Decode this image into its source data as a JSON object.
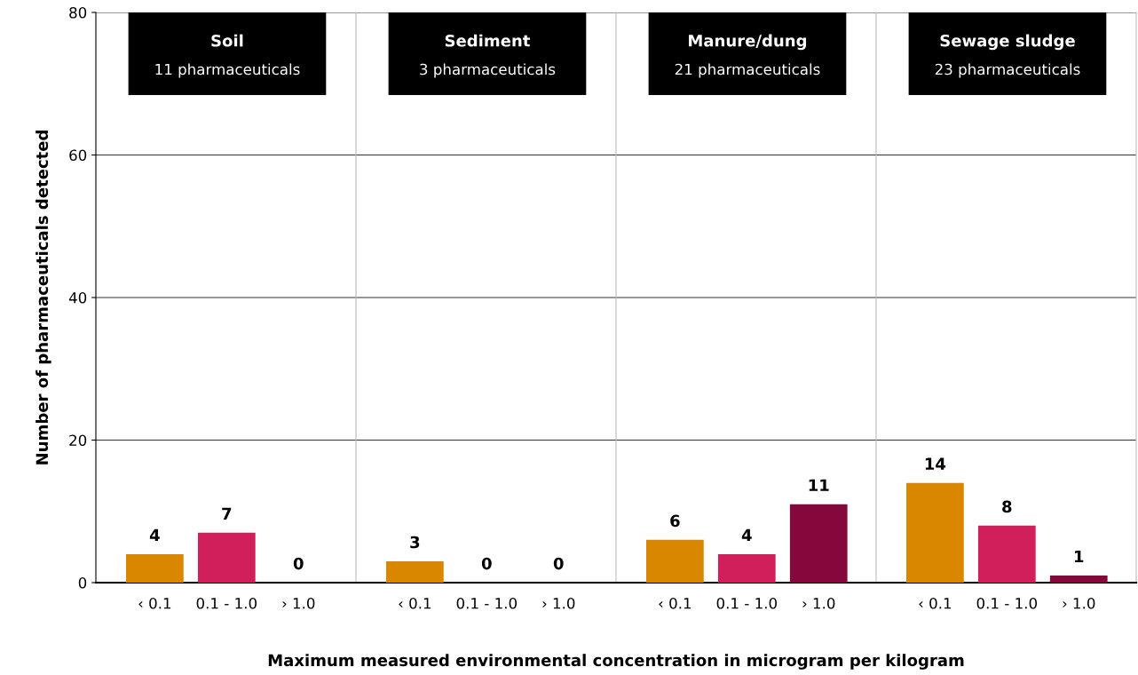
{
  "chart_data": [
    {
      "type": "bar",
      "title": "Soil",
      "subtitle": "11 pharmaceuticals",
      "ylabel": "Number of pharmaceuticals detected",
      "xlabel": "Maximum measured environmental concentration in microgram per kilogram",
      "categories": [
        "‹ 0.1",
        "0.1 - 1.0",
        "› 1.0"
      ],
      "values": [
        4,
        7,
        0
      ],
      "colors": [
        "#d98600",
        "#d11f5b",
        "#84083b"
      ],
      "ylim": [
        0,
        80
      ],
      "yticks": [
        0,
        20,
        40,
        60,
        80
      ],
      "grid": "y",
      "data_labels": true
    },
    {
      "type": "bar",
      "title": "Sediment",
      "subtitle": "3 pharmaceuticals",
      "categories": [
        "‹ 0.1",
        "0.1 - 1.0",
        "› 1.0"
      ],
      "values": [
        3,
        0,
        0
      ],
      "colors": [
        "#d98600",
        "#d11f5b",
        "#84083b"
      ],
      "ylim": [
        0,
        80
      ],
      "yticks": [
        0,
        20,
        40,
        60,
        80
      ],
      "grid": "y",
      "data_labels": true,
      "tick_labels": "x"
    },
    {
      "type": "bar",
      "title": "Manure/dung",
      "subtitle": "21 pharmaceuticals",
      "categories": [
        "‹ 0.1",
        "0.1 - 1.0",
        "› 1.0"
      ],
      "values": [
        6,
        4,
        11
      ],
      "colors": [
        "#d98600",
        "#d11f5b",
        "#84083b"
      ],
      "ylim": [
        0,
        80
      ],
      "yticks": [
        0,
        20,
        40,
        60,
        80
      ],
      "grid": "y",
      "data_labels": true,
      "tick_labels": "x"
    },
    {
      "type": "bar",
      "title": "Sewage sludge",
      "subtitle": "23 pharmaceuticals",
      "categories": [
        "‹ 0.1",
        "0.1 - 1.0",
        "› 1.0"
      ],
      "values": [
        14,
        8,
        1
      ],
      "colors": [
        "#d98600",
        "#d11f5b",
        "#84083b"
      ],
      "ylim": [
        0,
        80
      ],
      "yticks": [
        0,
        20,
        40,
        60,
        80
      ],
      "grid": "y",
      "data_labels": true,
      "tick_labels": "x"
    }
  ]
}
